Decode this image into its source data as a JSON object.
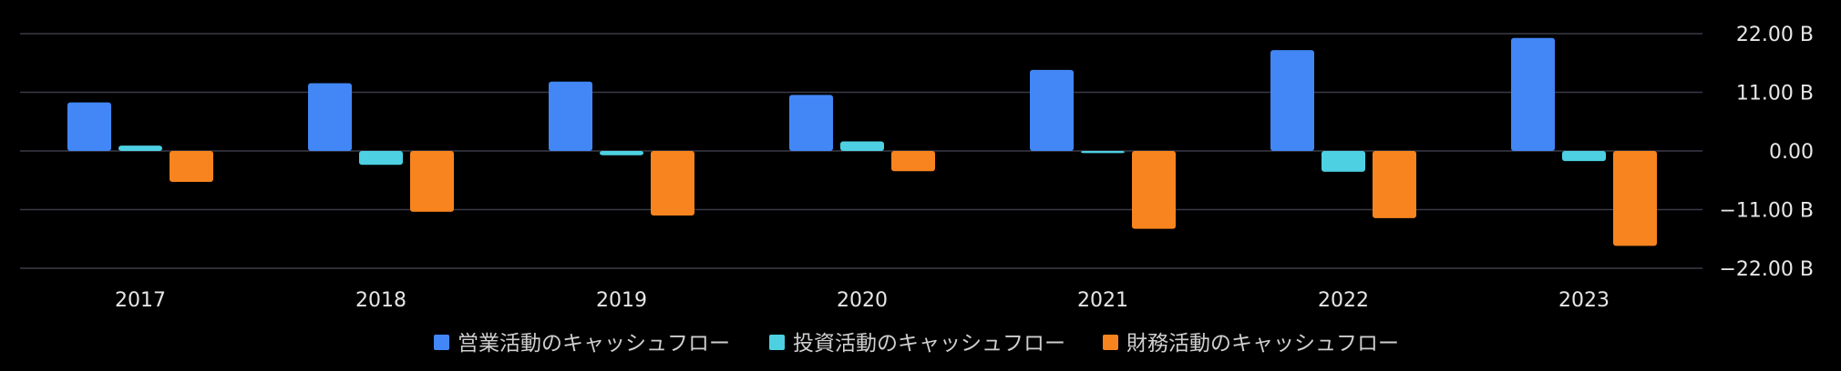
{
  "chart_data": {
    "type": "bar",
    "categories": [
      "2017",
      "2018",
      "2019",
      "2020",
      "2021",
      "2022",
      "2023"
    ],
    "series": [
      {
        "name": "営業活動のキャッシュフロー",
        "color": "#4287f5",
        "values": [
          9.1,
          12.7,
          13.0,
          10.5,
          15.2,
          18.9,
          21.2
        ]
      },
      {
        "name": "投資活動のキャッシュフロー",
        "color": "#4dd0e1",
        "values": [
          1.0,
          -2.6,
          -0.8,
          1.8,
          -0.4,
          -3.9,
          -1.9
        ]
      },
      {
        "name": "財務活動のキャッシュフロー",
        "color": "#f7841e",
        "values": [
          -5.8,
          -11.4,
          -12.1,
          -3.8,
          -14.6,
          -12.6,
          -17.8
        ]
      }
    ],
    "y_ticks": [
      {
        "value": 22,
        "label": "22.00 B"
      },
      {
        "value": 11,
        "label": "11.00 B"
      },
      {
        "value": 0,
        "label": "0.00"
      },
      {
        "value": -11,
        "label": "−11.00 B"
      },
      {
        "value": -22,
        "label": "−22.00 B"
      }
    ],
    "ylim": [
      -22,
      22
    ],
    "grid": true,
    "y_axis_position": "right",
    "legend_position": "bottom-center"
  }
}
